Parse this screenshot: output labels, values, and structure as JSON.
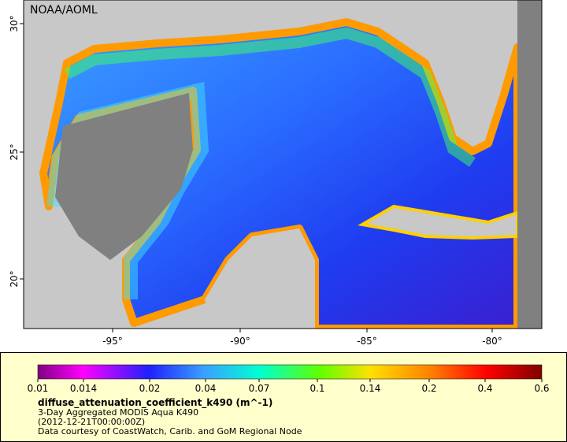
{
  "map": {
    "credit": "NOAA/AOML",
    "lon_ticks": [
      "-95°",
      "-90°",
      "-85°",
      "-80°"
    ],
    "lat_ticks": [
      "30°",
      "25°",
      "20°"
    ]
  },
  "legend": {
    "scale_labels": [
      "0.01",
      "0.014",
      "0.02",
      "0.04",
      "0.07",
      "0.1",
      "0.14",
      "0.2",
      "0.4",
      "0.6"
    ],
    "variable": "diffuse_attenuation_coefficient_k490 (m^-1)",
    "description": "3-Day Aggregated MODIS Aqua K490",
    "time": "(2012-12-21T00:00:00Z)",
    "source": "Data courtesy of CoastWatch, Carib. and GoM Regional Node"
  }
}
